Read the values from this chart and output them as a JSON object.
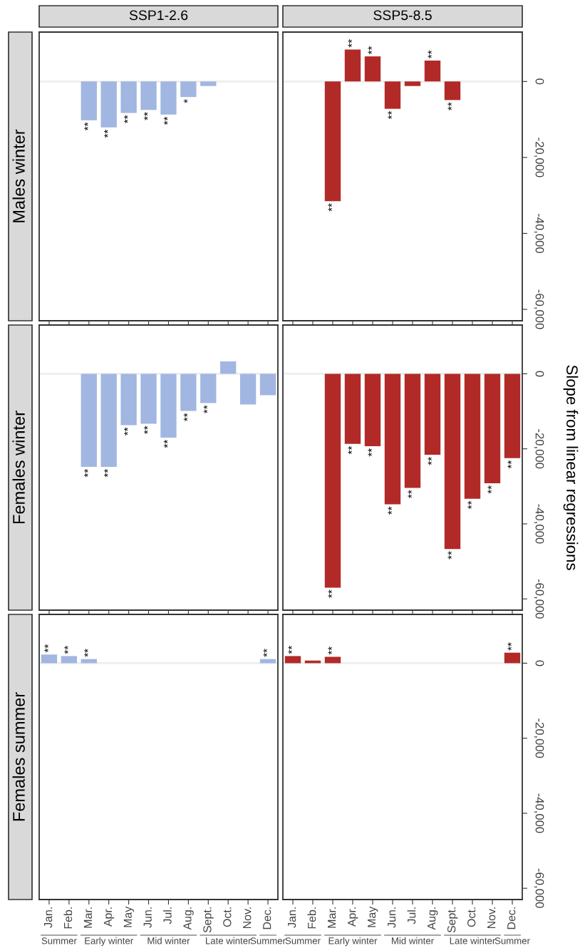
{
  "chart_data": [
    {
      "type": "bar",
      "title": "SSP1-2.6",
      "ylabel": "Males winter",
      "categories": [
        "Jan.",
        "Feb.",
        "Mar.",
        "Apr.",
        "May",
        "Jun.",
        "Jul.",
        "Aug.",
        "Sept.",
        "Oct.",
        "Nov.",
        "Dec."
      ],
      "color": "#a2b6e2",
      "values": [
        null,
        null,
        -10200,
        -12100,
        -8300,
        -7500,
        -8700,
        -4100,
        -1200,
        null,
        null,
        null
      ],
      "ylim": [
        -63000,
        13000
      ],
      "tick_labels": false,
      "grid": false,
      "ref_lines": [
        {
          "axis": "y",
          "value": 0,
          "color": "#eeeeee"
        }
      ],
      "annotations": [
        {
          "text": "**",
          "x": "Mar.",
          "y": -10200
        },
        {
          "text": "**",
          "x": "Apr.",
          "y": -12100
        },
        {
          "text": "**",
          "x": "May",
          "y": -8300
        },
        {
          "text": "**",
          "x": "Jun.",
          "y": -7500
        },
        {
          "text": "**",
          "x": "Jul.",
          "y": -8700
        },
        {
          "text": "*",
          "x": "Aug.",
          "y": -4100
        }
      ]
    },
    {
      "type": "bar",
      "title": "SSP5-8.5",
      "categories": [
        "Jan.",
        "Feb.",
        "Mar.",
        "Apr.",
        "May",
        "Jun.",
        "Jul.",
        "Aug.",
        "Sept.",
        "Oct.",
        "Nov.",
        "Dec."
      ],
      "color": "#b22a27",
      "values": [
        null,
        null,
        -31500,
        8400,
        6600,
        -7200,
        -1200,
        5500,
        -4900,
        null,
        null,
        null
      ],
      "ylim": [
        -63000,
        13000
      ],
      "yticks": [
        {
          "value": 0,
          "label": "0"
        },
        {
          "value": -20000,
          "label": "-20,000"
        },
        {
          "value": -40000,
          "label": "-40,000"
        },
        {
          "value": -60000,
          "label": "-60,000"
        }
      ],
      "tick_labels": "y",
      "grid": false,
      "ref_lines": [
        {
          "axis": "y",
          "value": 0,
          "color": "#eeeeee"
        }
      ],
      "annotations": [
        {
          "text": "**",
          "x": "Mar.",
          "y": -31500
        },
        {
          "text": "**",
          "x": "Apr.",
          "y": 8400
        },
        {
          "text": "**",
          "x": "May",
          "y": 6600
        },
        {
          "text": "**",
          "x": "Jun.",
          "y": -7200
        },
        {
          "text": "**",
          "x": "Aug.",
          "y": 5500
        },
        {
          "text": "**",
          "x": "Sept.",
          "y": -4900
        }
      ]
    },
    {
      "type": "bar",
      "ylabel": "Females winter",
      "categories": [
        "Jan.",
        "Feb.",
        "Mar.",
        "Apr.",
        "May",
        "Jun.",
        "Jul.",
        "Aug.",
        "Sept.",
        "Oct.",
        "Nov.",
        "Dec."
      ],
      "color": "#a2b6e2",
      "values": [
        null,
        null,
        -24800,
        -24800,
        -13700,
        -13300,
        -17000,
        -9900,
        -7800,
        3300,
        -8200,
        -5700
      ],
      "ylim": [
        -63000,
        13000
      ],
      "tick_labels": false,
      "grid": false,
      "ref_lines": [
        {
          "axis": "y",
          "value": 0,
          "color": "#eeeeee"
        }
      ],
      "annotations": [
        {
          "text": "**",
          "x": "Mar.",
          "y": -24800
        },
        {
          "text": "**",
          "x": "Apr.",
          "y": -24800
        },
        {
          "text": "**",
          "x": "May",
          "y": -13700
        },
        {
          "text": "**",
          "x": "Jun.",
          "y": -13300
        },
        {
          "text": "**",
          "x": "Jul.",
          "y": -17000
        },
        {
          "text": "**",
          "x": "Aug.",
          "y": -9900
        },
        {
          "text": "**",
          "x": "Sept.",
          "y": -7800
        }
      ]
    },
    {
      "type": "bar",
      "ylabel": "Slope from linear regressions",
      "categories": [
        "Jan.",
        "Feb.",
        "Mar.",
        "Apr.",
        "May",
        "Jun.",
        "Jul.",
        "Aug.",
        "Sept.",
        "Oct.",
        "Nov.",
        "Dec."
      ],
      "color": "#b22a27",
      "values": [
        null,
        null,
        -57000,
        -18700,
        -19300,
        -34800,
        -30400,
        -21600,
        -46700,
        -33300,
        -29200,
        -22500
      ],
      "ylim": [
        -63000,
        13000
      ],
      "yticks": [
        {
          "value": 0,
          "label": "0"
        },
        {
          "value": -20000,
          "label": "-20,000"
        },
        {
          "value": -40000,
          "label": "-40,000"
        },
        {
          "value": -60000,
          "label": "-60,000"
        }
      ],
      "tick_labels": "y",
      "grid": false,
      "ref_lines": [
        {
          "axis": "y",
          "value": 0,
          "color": "#eeeeee"
        }
      ],
      "annotations": [
        {
          "text": "**",
          "x": "Mar.",
          "y": -57000
        },
        {
          "text": "**",
          "x": "Apr.",
          "y": -18700
        },
        {
          "text": "**",
          "x": "May",
          "y": -19300
        },
        {
          "text": "**",
          "x": "Jun.",
          "y": -34800
        },
        {
          "text": "**",
          "x": "Jul.",
          "y": -30400
        },
        {
          "text": "**",
          "x": "Aug.",
          "y": -21600
        },
        {
          "text": "**",
          "x": "Sept.",
          "y": -46700
        },
        {
          "text": "**",
          "x": "Oct.",
          "y": -33300
        },
        {
          "text": "**",
          "x": "Nov.",
          "y": -29200
        },
        {
          "text": "**",
          "x": "Dec.",
          "y": -22500
        }
      ]
    },
    {
      "type": "bar",
      "ylabel": "Females summer",
      "categories": [
        "Jan.",
        "Feb.",
        "Mar.",
        "Apr.",
        "May",
        "Jun.",
        "Jul.",
        "Aug.",
        "Sept.",
        "Oct.",
        "Nov.",
        "Dec."
      ],
      "color": "#a2b6e2",
      "values": [
        2300,
        1900,
        1100,
        null,
        null,
        null,
        null,
        null,
        null,
        null,
        null,
        1100
      ],
      "ylim": [
        -63000,
        13000
      ],
      "tick_labels": "x",
      "grid": false,
      "ref_lines": [
        {
          "axis": "y",
          "value": 0,
          "color": "#eeeeee"
        }
      ],
      "annotations": [
        {
          "text": "**",
          "x": "Jan.",
          "y": 2300
        },
        {
          "text": "**",
          "x": "Feb.",
          "y": 1900
        },
        {
          "text": "**",
          "x": "Mar.",
          "y": 1100
        },
        {
          "text": "**",
          "x": "Dec.",
          "y": 1100
        },
        "Summer",
        "Early winter",
        "Mid winter",
        "Late winter",
        "Summer"
      ]
    },
    {
      "type": "bar",
      "categories": [
        "Jan.",
        "Feb.",
        "Mar.",
        "Apr.",
        "May",
        "Jun.",
        "Jul.",
        "Aug.",
        "Sept.",
        "Oct.",
        "Nov.",
        "Dec."
      ],
      "color": "#b22a27",
      "values": [
        1900,
        700,
        1700,
        null,
        null,
        null,
        null,
        null,
        null,
        null,
        null,
        2800
      ],
      "ylim": [
        -63000,
        13000
      ],
      "yticks": [
        {
          "value": 0,
          "label": "0"
        },
        {
          "value": -20000,
          "label": "-20,000"
        },
        {
          "value": -40000,
          "label": "-40,000"
        },
        {
          "value": -60000,
          "label": "-60,000"
        }
      ],
      "grid": false,
      "ref_lines": [
        {
          "axis": "y",
          "value": 0,
          "color": "#eeeeee"
        }
      ],
      "annotations": [
        {
          "text": "**",
          "x": "Jan.",
          "y": 1900
        },
        {
          "text": "**",
          "x": "Mar.",
          "y": 1700
        },
        {
          "text": "**",
          "x": "Dec.",
          "y": 2800
        },
        "Summer",
        "Early winter",
        "Mid winter",
        "Late winter",
        "Summer"
      ]
    }
  ]
}
